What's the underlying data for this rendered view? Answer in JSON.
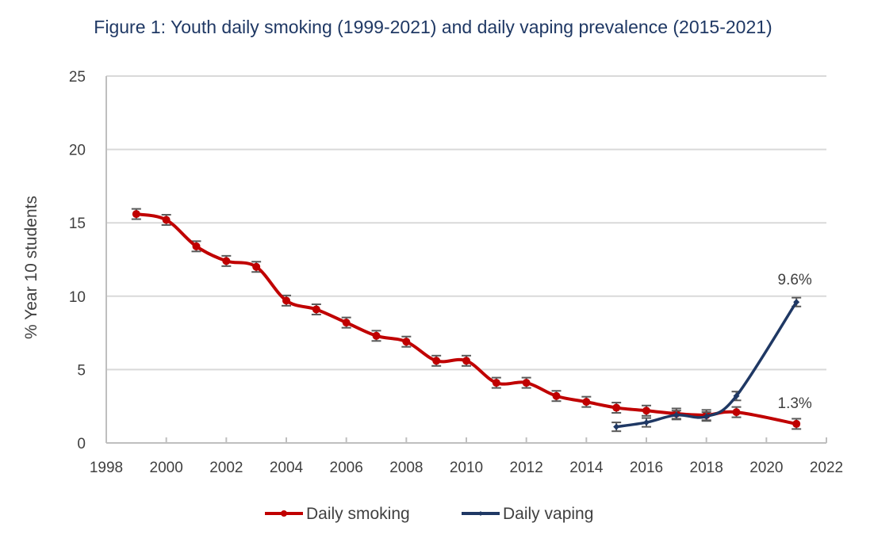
{
  "chart_data": {
    "type": "line",
    "title": "Figure 1: Youth daily smoking (1999-2021) and daily vaping prevalence (2015-2021)",
    "xlabel": "",
    "ylabel": "% Year 10 students",
    "xlim": [
      1998,
      2022
    ],
    "ylim": [
      0,
      25
    ],
    "x_ticks": [
      1998,
      2000,
      2002,
      2004,
      2006,
      2008,
      2010,
      2012,
      2014,
      2016,
      2018,
      2020,
      2022
    ],
    "x_tick_labels": [
      "1998",
      "2000",
      "2002",
      "2004",
      "2006",
      "2008",
      "2010",
      "2012",
      "2014",
      "2016",
      "2018",
      "2020",
      "2022"
    ],
    "y_ticks": [
      0,
      5,
      10,
      15,
      20,
      25
    ],
    "y_tick_labels": [
      "0",
      "5",
      "10",
      "15",
      "20",
      "25"
    ],
    "grid": "horizontal",
    "legend_position": "bottom",
    "series": [
      {
        "name": "Daily smoking",
        "color": "#C00000",
        "marker": "circle",
        "smooth": true,
        "x": [
          1999,
          2000,
          2001,
          2002,
          2003,
          2004,
          2005,
          2006,
          2007,
          2008,
          2009,
          2010,
          2011,
          2012,
          2013,
          2014,
          2015,
          2016,
          2017,
          2018,
          2019,
          2021
        ],
        "values": [
          15.6,
          15.2,
          13.4,
          12.4,
          12.0,
          9.7,
          9.1,
          8.2,
          7.3,
          6.9,
          5.6,
          5.6,
          4.1,
          4.1,
          3.2,
          2.8,
          2.4,
          2.2,
          2.0,
          1.9,
          2.1,
          1.3
        ],
        "error": 0.35,
        "end_label": "1.3%"
      },
      {
        "name": "Daily vaping",
        "color": "#1F3864",
        "marker": "diamond",
        "smooth": true,
        "x": [
          2015,
          2016,
          2017,
          2018,
          2019,
          2021
        ],
        "values": [
          1.1,
          1.4,
          1.9,
          1.8,
          3.2,
          9.6
        ],
        "error": 0.3,
        "end_label": "9.6%"
      }
    ]
  },
  "colors": {
    "title": "#1F3864",
    "text": "#404040",
    "axis": "#BFBFBF",
    "grid": "#D9D9D9",
    "error_bar": "#595959"
  }
}
